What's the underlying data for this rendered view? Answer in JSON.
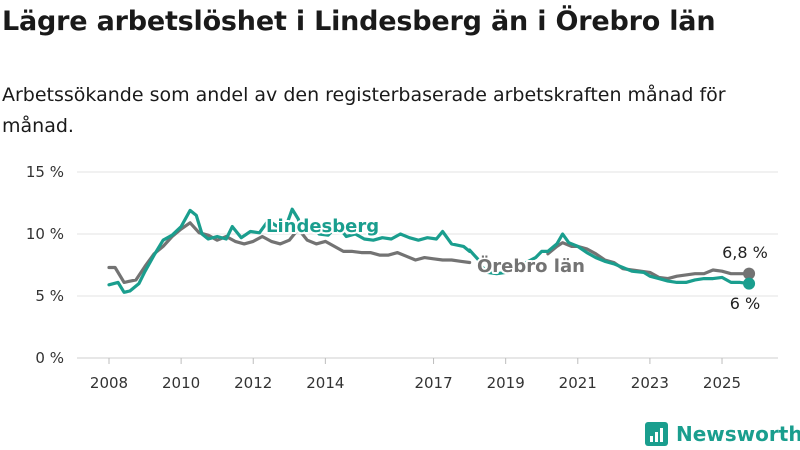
{
  "title": "Lägre arbetslöshet i Lindesberg än i Örebro län",
  "subtitle": "Arbetssökande som andel av den registerbaserade arbetskraften månad för månad.",
  "brand": "Newsworthy",
  "chart_data": {
    "type": "line",
    "ylim": [
      0,
      15
    ],
    "y_ticks": [
      0,
      5,
      10,
      15
    ],
    "y_tick_labels": [
      "0 %",
      "5 %",
      "10 %",
      "15 %"
    ],
    "x_range": [
      2008.0,
      2025.75
    ],
    "x_ticks": [
      2008,
      2010,
      2012,
      2014,
      2017,
      2019,
      2021,
      2023,
      2025
    ],
    "x_tick_labels": [
      "2008",
      "2010",
      "2012",
      "2014",
      "2017",
      "2019",
      "2021",
      "2023",
      "2025"
    ],
    "grid": "horizontal",
    "series": [
      {
        "name": "Lindesberg",
        "color": "#1a9e8e",
        "end_label": "6 %",
        "points": [
          [
            2008.0,
            5.9
          ],
          [
            2008.25,
            6.1
          ],
          [
            2008.42,
            5.3
          ],
          [
            2008.58,
            5.4
          ],
          [
            2008.83,
            6.0
          ],
          [
            2009.0,
            7.0
          ],
          [
            2009.25,
            8.3
          ],
          [
            2009.5,
            9.5
          ],
          [
            2009.75,
            9.9
          ],
          [
            2010.0,
            10.6
          ],
          [
            2010.25,
            11.9
          ],
          [
            2010.42,
            11.5
          ],
          [
            2010.58,
            10.0
          ],
          [
            2010.75,
            9.6
          ],
          [
            2011.0,
            9.8
          ],
          [
            2011.25,
            9.6
          ],
          [
            2011.42,
            10.6
          ],
          [
            2011.67,
            9.7
          ],
          [
            2011.92,
            10.2
          ],
          [
            2012.17,
            10.1
          ],
          [
            2012.42,
            11.1
          ],
          [
            2012.67,
            10.6
          ],
          [
            2012.92,
            10.7
          ],
          [
            2013.08,
            12.0
          ],
          [
            2013.25,
            11.2
          ],
          [
            2013.33,
            10.2
          ],
          [
            2013.58,
            10.8
          ],
          [
            2013.83,
            10.0
          ],
          [
            2014.08,
            9.9
          ],
          [
            2014.33,
            10.7
          ],
          [
            2014.58,
            9.8
          ],
          [
            2014.83,
            10.0
          ],
          [
            2015.08,
            9.6
          ],
          [
            2015.33,
            9.5
          ],
          [
            2015.58,
            9.7
          ],
          [
            2015.83,
            9.6
          ],
          [
            2016.08,
            10.0
          ],
          [
            2016.33,
            9.7
          ],
          [
            2016.58,
            9.5
          ],
          [
            2016.83,
            9.7
          ],
          [
            2017.08,
            9.6
          ],
          [
            2017.25,
            10.2
          ],
          [
            2017.5,
            9.2
          ],
          [
            2017.83,
            9.0
          ],
          [
            2018.0,
            8.6
          ]
        ]
      },
      {
        "name": "Lindesberg (forts.)",
        "color": "#1a9e8e",
        "points": [
          [
            2018.0,
            8.7
          ],
          [
            2018.25,
            7.9
          ],
          [
            2018.33,
            7.4
          ],
          [
            2018.5,
            6.9
          ],
          [
            2018.75,
            6.8
          ],
          [
            2019.0,
            6.9
          ],
          [
            2019.25,
            7.6
          ],
          [
            2019.5,
            7.6
          ],
          [
            2019.83,
            8.1
          ],
          [
            2020.0,
            8.6
          ],
          [
            2020.17,
            8.6
          ],
          [
            2020.42,
            9.2
          ],
          [
            2020.58,
            10.0
          ],
          [
            2020.75,
            9.3
          ],
          [
            2021.0,
            9.0
          ],
          [
            2021.25,
            8.5
          ],
          [
            2021.5,
            8.1
          ],
          [
            2021.75,
            7.8
          ],
          [
            2022.0,
            7.6
          ],
          [
            2022.25,
            7.3
          ],
          [
            2022.5,
            7.0
          ],
          [
            2022.83,
            6.9
          ],
          [
            2023.0,
            6.6
          ],
          [
            2023.25,
            6.4
          ],
          [
            2023.5,
            6.2
          ],
          [
            2023.75,
            6.1
          ],
          [
            2024.0,
            6.1
          ],
          [
            2024.25,
            6.3
          ],
          [
            2024.5,
            6.4
          ],
          [
            2024.75,
            6.4
          ],
          [
            2025.0,
            6.5
          ],
          [
            2025.25,
            6.1
          ],
          [
            2025.5,
            6.1
          ],
          [
            2025.75,
            6.0
          ]
        ]
      },
      {
        "name": "Örebro län",
        "color": "#737373",
        "end_label": "6,8 %",
        "points": [
          [
            2008.0,
            7.3
          ],
          [
            2008.17,
            7.3
          ],
          [
            2008.42,
            6.1
          ],
          [
            2008.75,
            6.3
          ],
          [
            2009.0,
            7.4
          ],
          [
            2009.25,
            8.4
          ],
          [
            2009.5,
            9.0
          ],
          [
            2009.75,
            9.8
          ],
          [
            2010.0,
            10.4
          ],
          [
            2010.25,
            10.9
          ],
          [
            2010.5,
            10.1
          ],
          [
            2010.75,
            9.9
          ],
          [
            2011.0,
            9.5
          ],
          [
            2011.25,
            9.8
          ],
          [
            2011.5,
            9.4
          ],
          [
            2011.75,
            9.2
          ],
          [
            2012.0,
            9.4
          ],
          [
            2012.25,
            9.8
          ],
          [
            2012.5,
            9.4
          ],
          [
            2012.75,
            9.2
          ],
          [
            2013.0,
            9.5
          ],
          [
            2013.25,
            10.4
          ],
          [
            2013.5,
            9.5
          ],
          [
            2013.75,
            9.2
          ],
          [
            2014.0,
            9.4
          ],
          [
            2014.25,
            9.0
          ],
          [
            2014.5,
            8.6
          ],
          [
            2014.75,
            8.6
          ],
          [
            2015.0,
            8.5
          ],
          [
            2015.25,
            8.5
          ],
          [
            2015.5,
            8.3
          ],
          [
            2015.75,
            8.3
          ],
          [
            2016.0,
            8.5
          ],
          [
            2016.25,
            8.2
          ],
          [
            2016.5,
            7.9
          ],
          [
            2016.75,
            8.1
          ],
          [
            2017.0,
            8.0
          ],
          [
            2017.25,
            7.9
          ],
          [
            2017.5,
            7.9
          ],
          [
            2017.75,
            7.8
          ],
          [
            2018.0,
            7.7
          ]
        ]
      },
      {
        "name": "Örebro län (forts.)",
        "color": "#737373",
        "points": [
          [
            2020.17,
            8.4
          ],
          [
            2020.42,
            9.0
          ],
          [
            2020.58,
            9.3
          ],
          [
            2020.83,
            9.0
          ],
          [
            2021.0,
            9.0
          ],
          [
            2021.25,
            8.8
          ],
          [
            2021.5,
            8.4
          ],
          [
            2021.75,
            7.9
          ],
          [
            2022.0,
            7.7
          ],
          [
            2022.25,
            7.2
          ],
          [
            2022.5,
            7.1
          ],
          [
            2022.75,
            7.0
          ],
          [
            2023.0,
            6.9
          ],
          [
            2023.25,
            6.5
          ],
          [
            2023.5,
            6.4
          ],
          [
            2023.75,
            6.6
          ],
          [
            2024.0,
            6.7
          ],
          [
            2024.25,
            6.8
          ],
          [
            2024.5,
            6.8
          ],
          [
            2024.75,
            7.1
          ],
          [
            2025.0,
            7.0
          ],
          [
            2025.25,
            6.8
          ],
          [
            2025.5,
            6.8
          ],
          [
            2025.75,
            6.8
          ]
        ]
      }
    ],
    "series_labels": [
      {
        "text": "Lindesberg",
        "color": "#1a9e8e"
      },
      {
        "text": "Örebro län",
        "color": "#737373"
      }
    ]
  }
}
